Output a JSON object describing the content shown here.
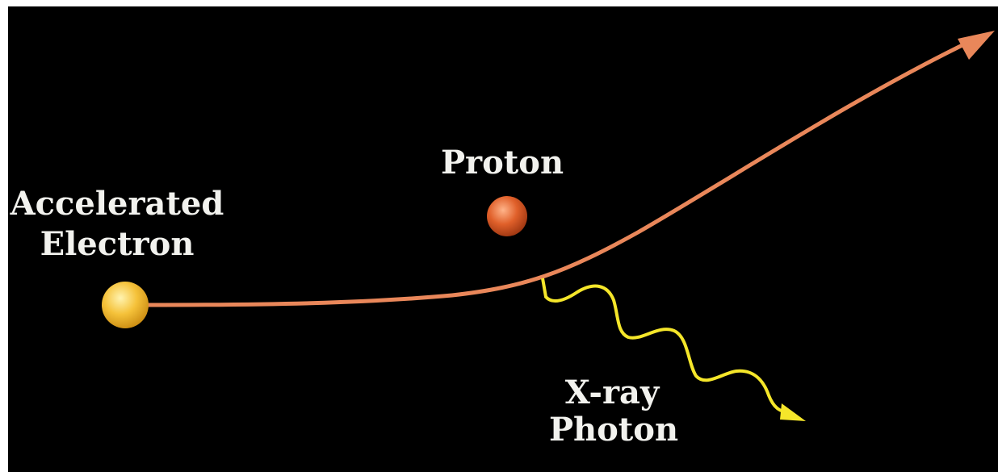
{
  "nodes": [
    {
      "id": "electron",
      "label": [
        "Accelerated",
        "Electron"
      ]
    },
    {
      "id": "proton",
      "label": [
        "Proton"
      ]
    },
    {
      "id": "photon",
      "label": [
        "X-ray",
        "Photon"
      ]
    }
  ]
}
